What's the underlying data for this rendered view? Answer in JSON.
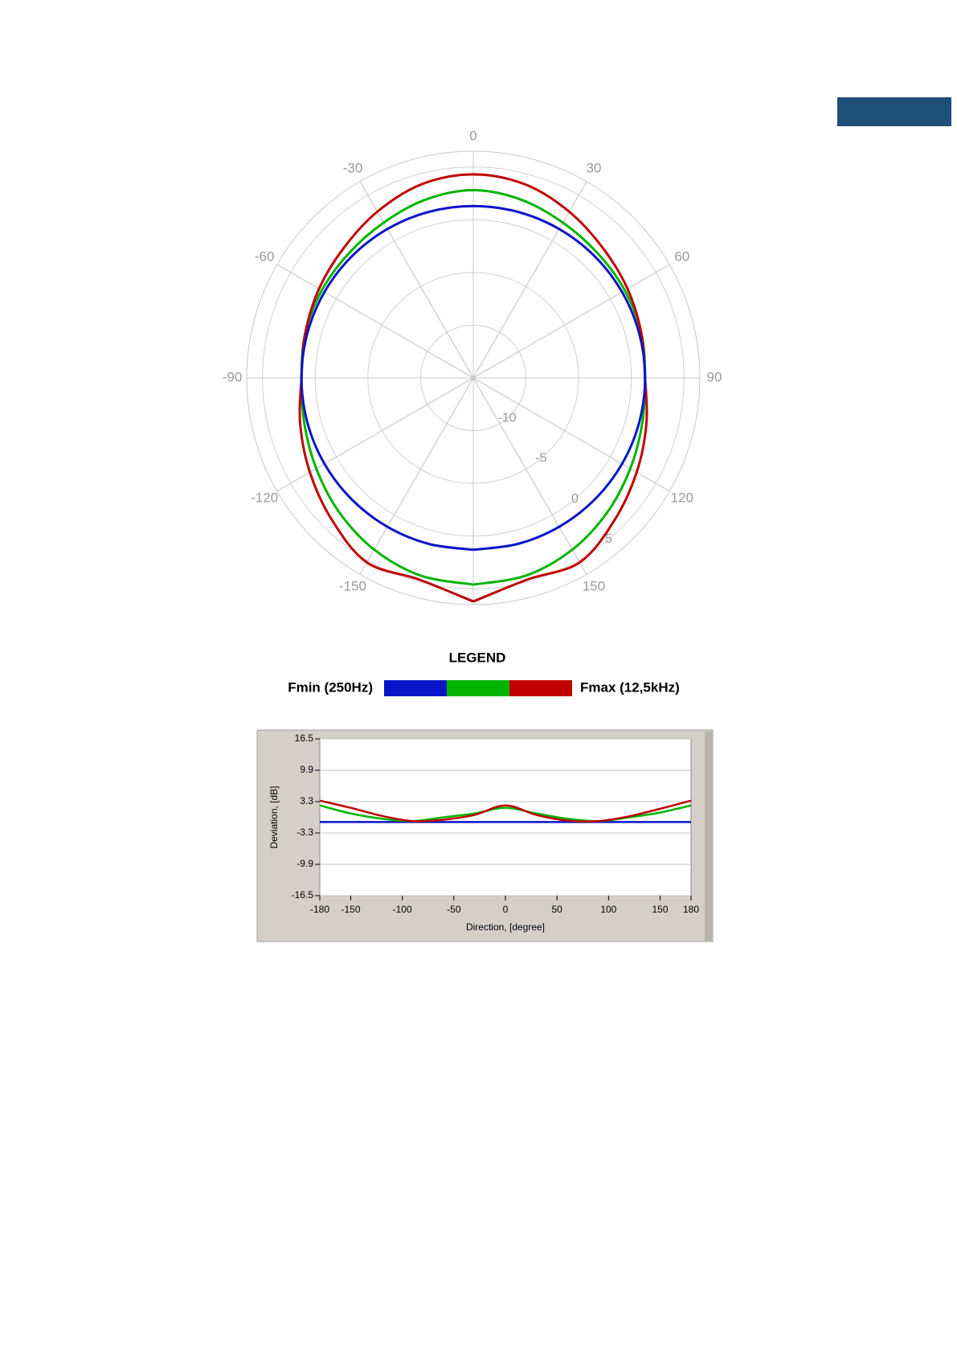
{
  "chart_data": [
    {
      "type": "polar",
      "legend_title": "LEGEND",
      "legend_min_label": "Fmin (250Hz)",
      "legend_max_label": "Fmax (12,5kHz)",
      "theta": [
        -180,
        -165,
        -150,
        -135,
        -120,
        -105,
        -90,
        -75,
        -60,
        -45,
        -30,
        -15,
        0,
        15,
        30,
        45,
        60,
        75,
        90,
        105,
        120,
        135,
        150,
        165,
        180
      ],
      "rlim": [
        -15,
        6.5
      ],
      "rticks": [
        -10,
        -5,
        0,
        5
      ],
      "thetaticks": [
        -150,
        -120,
        -90,
        -60,
        -30,
        0,
        30,
        60,
        90,
        120,
        150
      ],
      "series": [
        {
          "color": "#00b400",
          "values": [
            4.6,
            4.4,
            3.8,
            3.0,
            2.2,
            1.6,
            1.3,
            1.5,
            1.6,
            1.7,
            2.0,
            2.5,
            2.8,
            2.5,
            2.0,
            1.7,
            1.6,
            1.5,
            1.3,
            1.6,
            2.2,
            3.0,
            3.8,
            4.4,
            4.6
          ]
        },
        {
          "color": "#c00000",
          "values": [
            6.2,
            4.8,
            5.2,
            4.0,
            2.9,
            2.0,
            1.3,
            1.5,
            1.9,
            2.4,
            3.2,
            4.0,
            4.3,
            4.0,
            3.2,
            2.4,
            1.9,
            1.5,
            1.3,
            2.0,
            2.9,
            4.0,
            5.2,
            4.8,
            6.2
          ]
        },
        {
          "color": "#0a14c8",
          "values": [
            1.3,
            1.3,
            1.3,
            1.3,
            1.3,
            1.3,
            1.3,
            1.3,
            1.3,
            1.3,
            1.3,
            1.3,
            1.3,
            1.3,
            1.3,
            1.3,
            1.3,
            1.3,
            1.3,
            1.3,
            1.3,
            1.3,
            1.3,
            1.3,
            1.3
          ]
        }
      ]
    },
    {
      "type": "line",
      "x_label": "Direction, [degree]",
      "y_label": "Deviation, [dB]",
      "x": [
        -180,
        -150,
        -120,
        -90,
        -60,
        -30,
        0,
        30,
        60,
        90,
        120,
        150,
        180
      ],
      "xlim": [
        -180,
        180
      ],
      "xticks": [
        -180,
        -150,
        -100,
        -50,
        0,
        50,
        100,
        150,
        180
      ],
      "ylim": [
        -16.5,
        16.5
      ],
      "yticks": [
        -16.5,
        -9.9,
        -3.3,
        3.3,
        9.9,
        16.5
      ],
      "series": [
        {
          "color": "#0a14c8",
          "values": [
            -1,
            -1,
            -1,
            -1,
            -1,
            -1,
            -1,
            -1,
            -1,
            -1,
            -1,
            -1,
            -1
          ]
        },
        {
          "color": "#00b400",
          "values": [
            2.5,
            0.8,
            -0.3,
            -0.8,
            0,
            0.8,
            2.0,
            0.8,
            -0.3,
            -0.8,
            0,
            1.0,
            2.5
          ]
        },
        {
          "color": "#c00000",
          "values": [
            3.5,
            2.0,
            0.3,
            -0.8,
            -0.5,
            0.5,
            2.5,
            0.5,
            -0.7,
            -0.8,
            0.2,
            1.8,
            3.5
          ]
        }
      ]
    }
  ]
}
